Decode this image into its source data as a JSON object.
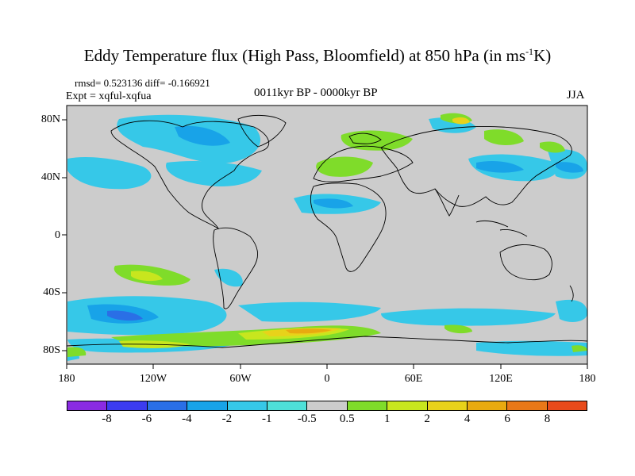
{
  "title": "Eddy Temperature flux (High Pass, Bloomfield) at 850 hPa (in ms",
  "title_sup": "-1",
  "title_end": "K)",
  "stats": "rmsd= 0.523136 diff= -0.166921",
  "expt": "Expt = xqful-xqfua",
  "period": "0011kyr BP - 0000kyr BP",
  "season": "JJA",
  "lat_labels": [
    "80N",
    "40N",
    "0",
    "40S",
    "80S"
  ],
  "lon_labels": [
    "180",
    "120W",
    "60W",
    "0",
    "60E",
    "120E",
    "180"
  ],
  "colorbar": {
    "colors": [
      "#8a2be2",
      "#3c3cf0",
      "#2a6fe6",
      "#18a3e8",
      "#36c8e8",
      "#4ee0d8",
      "#cccccc",
      "#7fdc2a",
      "#c8e61e",
      "#e8d21a",
      "#e8aa10",
      "#e87818",
      "#e84a1a"
    ],
    "labels": [
      "-8",
      "-6",
      "-4",
      "-2",
      "-1",
      "-0.5",
      "0.5",
      "1",
      "2",
      "4",
      "6",
      "8"
    ]
  },
  "map_background": "#cccccc"
}
